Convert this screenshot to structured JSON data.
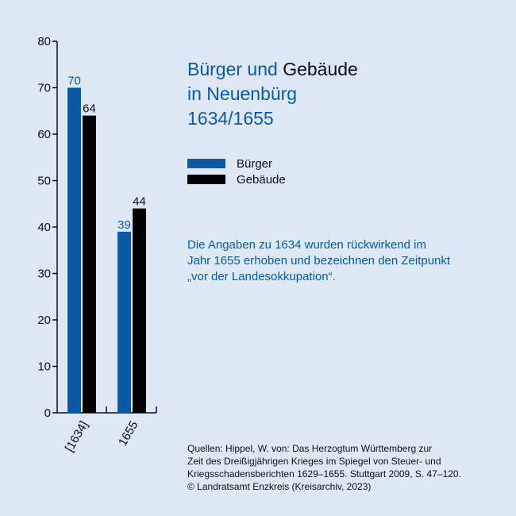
{
  "title": {
    "part1": "Bürger und ",
    "part2": "Gebäude",
    "line2": "in Neuenbürg",
    "line3": "1634/1655"
  },
  "legend": [
    {
      "label": "Bürger",
      "color": "#0b5aa6"
    },
    {
      "label": "Gebäude",
      "color": "#000000"
    }
  ],
  "note": [
    "Die Angaben zu 1634 wurden rückwirkend im",
    "Jahr 1655 erhoben und bezeichnen den Zeitpunkt",
    "„vor der Landesokkupation“."
  ],
  "sources": [
    "Quellen: Hippel, W. von: Das Herzogtum Württemberg zur",
    "Zeit des Dreißigjährigen Krieges im Spiegel von Steuer- und",
    "Kriegsschadensberichten 1629–1655. Stuttgart 2009, S. 47–120.",
    "© Landratsamt Enzkreis (Kreisarchiv, 2023)"
  ],
  "chart_data": {
    "type": "bar",
    "categories": [
      "[1634]",
      "1655"
    ],
    "series": [
      {
        "name": "Bürger",
        "values": [
          70,
          39
        ],
        "color": "#0b5aa6"
      },
      {
        "name": "Gebäude",
        "values": [
          64,
          44
        ],
        "color": "#000000"
      }
    ],
    "ylim": [
      0,
      80
    ],
    "yticks": [
      0,
      10,
      20,
      30,
      40,
      50,
      60,
      70,
      80
    ],
    "grid": false,
    "legend": "right"
  }
}
